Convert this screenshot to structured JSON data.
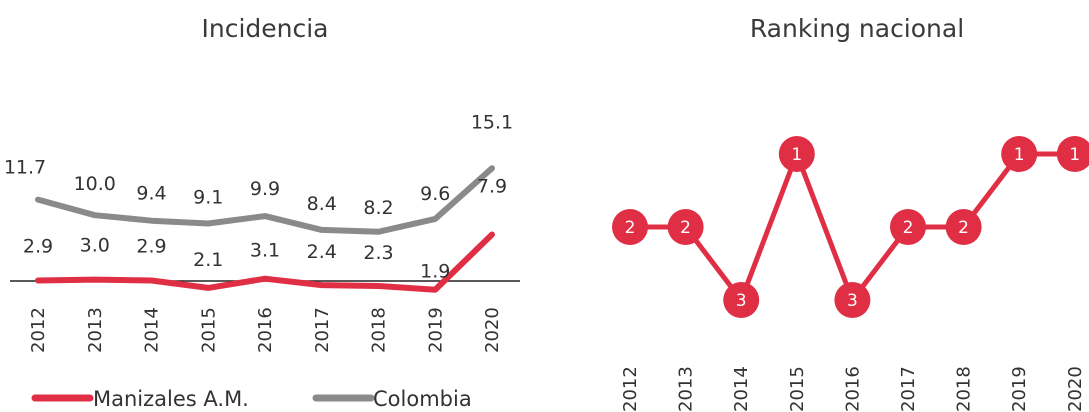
{
  "colors": {
    "manizales": "#e02f45",
    "colombia": "#8a8a8a",
    "axis": "#222222"
  },
  "chart_data": [
    {
      "type": "line",
      "title": "Incidencia",
      "categories": [
        "2012",
        "2013",
        "2014",
        "2015",
        "2016",
        "2017",
        "2018",
        "2019",
        "2020"
      ],
      "series": [
        {
          "name": "Manizales A.M.",
          "values": [
            2.9,
            3.0,
            2.9,
            2.1,
            3.1,
            2.4,
            2.3,
            1.9,
            7.9
          ],
          "labels": [
            "2.9",
            "3.0",
            "2.9",
            "2.1",
            "3.1",
            "2.4",
            "2.3",
            "1.9",
            "7.9"
          ]
        },
        {
          "name": "Colombia",
          "values": [
            11.7,
            10.0,
            9.4,
            9.1,
            9.9,
            8.4,
            8.2,
            9.6,
            15.1
          ],
          "labels": [
            "11.7",
            "10.0",
            "9.4",
            "9.1",
            "9.9",
            "8.4",
            "8.2",
            "9.6",
            "15.1"
          ]
        }
      ],
      "legend": "bottom"
    },
    {
      "type": "line",
      "title": "Ranking nacional",
      "categories": [
        "2012",
        "2013",
        "2014",
        "2015",
        "2016",
        "2017",
        "2018",
        "2019",
        "2020"
      ],
      "series": [
        {
          "name": "",
          "values": [
            2,
            2,
            3,
            1,
            3,
            2,
            2,
            1,
            1
          ],
          "labels": [
            "2",
            "2",
            "3",
            "1",
            "3",
            "2",
            "2",
            "1",
            "1"
          ]
        }
      ],
      "ylim": [
        1,
        3
      ],
      "y_inverted": true
    }
  ]
}
